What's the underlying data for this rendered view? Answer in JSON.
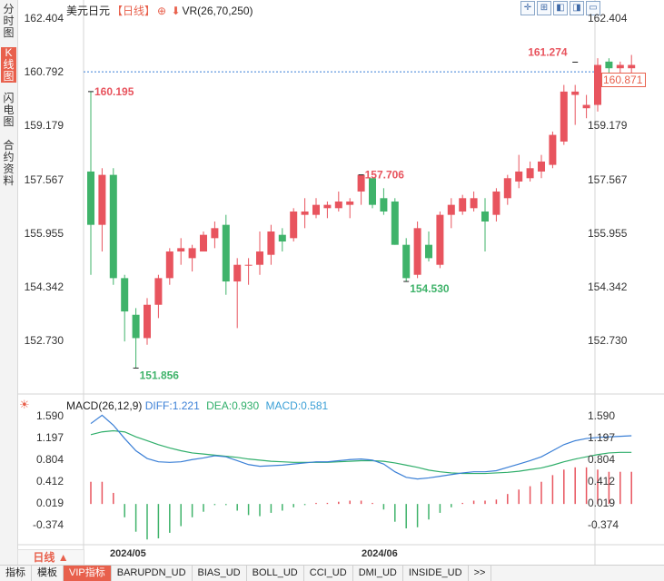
{
  "sidebar": {
    "tabs": [
      {
        "label": "分时图",
        "active": false
      },
      {
        "label": "K线图",
        "active": true
      },
      {
        "label": "闪电图",
        "active": false
      },
      {
        "label": "合约资料",
        "active": false
      }
    ]
  },
  "header": {
    "symbol": "美元日元",
    "period": "【日线】",
    "vr_label": "VR(26,70,250)"
  },
  "colors": {
    "up": "#e8545e",
    "down": "#3fb36a",
    "diff": "#3a7fd6",
    "dea": "#2fae6a",
    "accent": "#e8604c"
  },
  "axis": {
    "price_ticks": [
      "162.404",
      "160.792",
      "159.179",
      "157.567",
      "155.955",
      "154.342",
      "152.730"
    ],
    "current_price": "160.871",
    "macd_ticks": [
      "1.590",
      "1.197",
      "0.804",
      "0.412",
      "0.019",
      "-0.374"
    ]
  },
  "annotations": {
    "high1": "160.195",
    "low1": "151.856",
    "high2": "157.706",
    "low2": "154.530",
    "high3": "161.274"
  },
  "macd": {
    "title": "MACD(26,12,9)",
    "diff": "DIFF:1.221",
    "dea": "DEA:0.930",
    "macd": "MACD:0.581"
  },
  "dates": [
    "2024/05",
    "2024/06"
  ],
  "period_button": "日线 ▲",
  "bottom_tabs": [
    "指标",
    "模板",
    "VIP指标",
    "BARUPDN_UD",
    "BIAS_UD",
    "BOLL_UD",
    "CCI_UD",
    "DMI_UD",
    "INSIDE_UD",
    ">>"
  ],
  "chart_data": {
    "type": "candlestick",
    "price_range": [
      151.5,
      162.6
    ],
    "candles": [
      {
        "o": 157.8,
        "h": 160.2,
        "l": 154.7,
        "c": 156.2
      },
      {
        "o": 156.2,
        "h": 157.9,
        "l": 155.4,
        "c": 157.7
      },
      {
        "o": 157.7,
        "h": 157.9,
        "l": 154.4,
        "c": 154.6
      },
      {
        "o": 154.6,
        "h": 154.7,
        "l": 152.7,
        "c": 153.6
      },
      {
        "o": 153.5,
        "h": 153.7,
        "l": 151.9,
        "c": 152.8
      },
      {
        "o": 152.8,
        "h": 154.0,
        "l": 152.6,
        "c": 153.8
      },
      {
        "o": 153.8,
        "h": 154.7,
        "l": 153.4,
        "c": 154.6
      },
      {
        "o": 154.6,
        "h": 155.5,
        "l": 154.4,
        "c": 155.4
      },
      {
        "o": 155.4,
        "h": 155.8,
        "l": 155.0,
        "c": 155.5
      },
      {
        "o": 155.2,
        "h": 155.6,
        "l": 154.8,
        "c": 155.5
      },
      {
        "o": 155.4,
        "h": 156.0,
        "l": 155.4,
        "c": 155.9
      },
      {
        "o": 155.8,
        "h": 156.3,
        "l": 155.5,
        "c": 156.1
      },
      {
        "o": 156.2,
        "h": 156.5,
        "l": 154.1,
        "c": 154.5
      },
      {
        "o": 154.5,
        "h": 155.2,
        "l": 153.1,
        "c": 155.0
      },
      {
        "o": 155.0,
        "h": 155.2,
        "l": 154.4,
        "c": 155.0
      },
      {
        "o": 155.0,
        "h": 156.0,
        "l": 154.7,
        "c": 155.4
      },
      {
        "o": 155.3,
        "h": 156.2,
        "l": 155.0,
        "c": 156.0
      },
      {
        "o": 155.9,
        "h": 156.1,
        "l": 155.4,
        "c": 155.7
      },
      {
        "o": 155.8,
        "h": 156.7,
        "l": 155.7,
        "c": 156.6
      },
      {
        "o": 156.5,
        "h": 157.0,
        "l": 156.1,
        "c": 156.6
      },
      {
        "o": 156.5,
        "h": 157.0,
        "l": 156.4,
        "c": 156.8
      },
      {
        "o": 156.7,
        "h": 156.9,
        "l": 156.4,
        "c": 156.8
      },
      {
        "o": 156.7,
        "h": 157.2,
        "l": 156.6,
        "c": 156.9
      },
      {
        "o": 156.8,
        "h": 157.0,
        "l": 156.4,
        "c": 156.9
      },
      {
        "o": 157.2,
        "h": 157.7,
        "l": 156.8,
        "c": 157.7
      },
      {
        "o": 157.6,
        "h": 157.6,
        "l": 156.7,
        "c": 156.8
      },
      {
        "o": 157.0,
        "h": 157.3,
        "l": 156.5,
        "c": 156.6
      },
      {
        "o": 156.9,
        "h": 157.0,
        "l": 155.6,
        "c": 155.6
      },
      {
        "o": 155.6,
        "h": 155.8,
        "l": 154.5,
        "c": 154.6
      },
      {
        "o": 154.7,
        "h": 156.3,
        "l": 154.6,
        "c": 156.1
      },
      {
        "o": 155.6,
        "h": 156.0,
        "l": 155.1,
        "c": 155.2
      },
      {
        "o": 155.0,
        "h": 156.6,
        "l": 154.9,
        "c": 156.5
      },
      {
        "o": 156.5,
        "h": 157.0,
        "l": 156.1,
        "c": 156.8
      },
      {
        "o": 156.6,
        "h": 157.1,
        "l": 156.5,
        "c": 157.0
      },
      {
        "o": 156.7,
        "h": 157.2,
        "l": 156.6,
        "c": 157.0
      },
      {
        "o": 156.6,
        "h": 157.0,
        "l": 155.4,
        "c": 156.3
      },
      {
        "o": 156.5,
        "h": 157.3,
        "l": 156.3,
        "c": 157.2
      },
      {
        "o": 157.0,
        "h": 157.7,
        "l": 156.8,
        "c": 157.6
      },
      {
        "o": 157.5,
        "h": 158.3,
        "l": 157.3,
        "c": 157.8
      },
      {
        "o": 157.6,
        "h": 158.1,
        "l": 157.5,
        "c": 157.9
      },
      {
        "o": 157.8,
        "h": 158.3,
        "l": 157.6,
        "c": 158.1
      },
      {
        "o": 158.0,
        "h": 159.0,
        "l": 157.9,
        "c": 158.9
      },
      {
        "o": 158.7,
        "h": 160.4,
        "l": 158.6,
        "c": 160.2
      },
      {
        "o": 160.1,
        "h": 160.4,
        "l": 159.2,
        "c": 160.2
      },
      {
        "o": 159.7,
        "h": 160.1,
        "l": 159.4,
        "c": 159.8
      },
      {
        "o": 159.8,
        "h": 161.2,
        "l": 159.6,
        "c": 161.0
      },
      {
        "o": 161.1,
        "h": 161.2,
        "l": 160.4,
        "c": 160.9
      },
      {
        "o": 160.9,
        "h": 161.1,
        "l": 160.5,
        "c": 161.0
      },
      {
        "o": 160.9,
        "h": 161.3,
        "l": 160.5,
        "c": 161.0
      }
    ],
    "macd_range": [
      -0.8,
      1.7
    ],
    "diff": [
      1.45,
      1.6,
      1.42,
      1.18,
      0.96,
      0.82,
      0.76,
      0.75,
      0.76,
      0.8,
      0.83,
      0.87,
      0.85,
      0.78,
      0.71,
      0.68,
      0.69,
      0.7,
      0.72,
      0.74,
      0.76,
      0.76,
      0.78,
      0.8,
      0.81,
      0.79,
      0.72,
      0.58,
      0.48,
      0.45,
      0.47,
      0.5,
      0.53,
      0.56,
      0.58,
      0.58,
      0.6,
      0.66,
      0.72,
      0.78,
      0.85,
      0.96,
      1.07,
      1.14,
      1.18,
      1.2,
      1.21,
      1.22,
      1.23
    ],
    "dea": [
      1.25,
      1.3,
      1.32,
      1.3,
      1.21,
      1.14,
      1.07,
      1.01,
      0.96,
      0.92,
      0.9,
      0.88,
      0.86,
      0.84,
      0.81,
      0.79,
      0.77,
      0.76,
      0.75,
      0.75,
      0.75,
      0.75,
      0.76,
      0.77,
      0.78,
      0.78,
      0.77,
      0.74,
      0.7,
      0.66,
      0.61,
      0.58,
      0.56,
      0.55,
      0.55,
      0.55,
      0.56,
      0.57,
      0.59,
      0.62,
      0.65,
      0.7,
      0.76,
      0.81,
      0.85,
      0.89,
      0.92,
      0.93,
      0.93
    ],
    "macd_hist": [
      0.4,
      0.4,
      0.2,
      -0.24,
      -0.5,
      -0.64,
      -0.62,
      -0.52,
      -0.4,
      -0.24,
      -0.14,
      -0.02,
      -0.02,
      -0.12,
      -0.2,
      -0.22,
      -0.16,
      -0.12,
      -0.06,
      -0.02,
      0.02,
      0.02,
      0.04,
      0.06,
      0.06,
      0.02,
      -0.1,
      -0.32,
      -0.44,
      -0.42,
      -0.28,
      -0.16,
      -0.06,
      0.02,
      0.06,
      0.06,
      0.08,
      0.18,
      0.26,
      0.32,
      0.4,
      0.52,
      0.62,
      0.66,
      0.66,
      0.62,
      0.58,
      0.58,
      0.58
    ]
  }
}
